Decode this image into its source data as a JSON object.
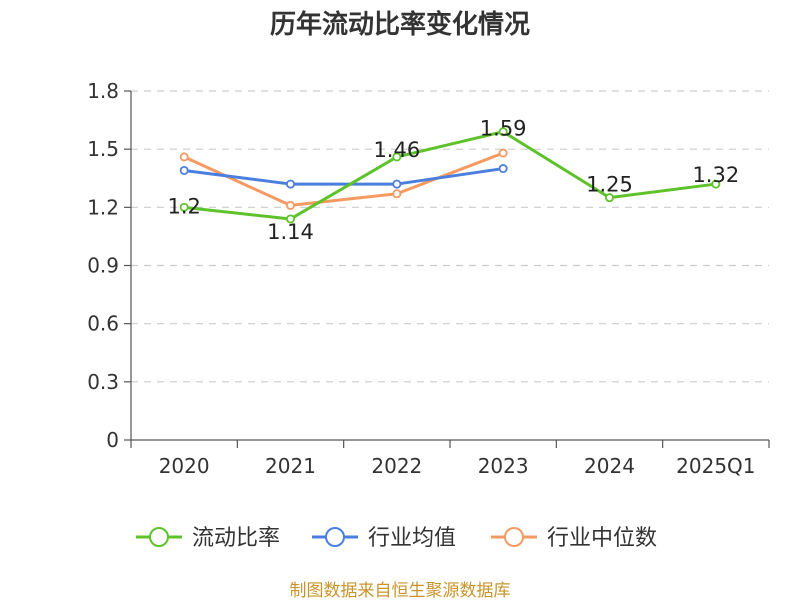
{
  "chart_data": {
    "type": "line",
    "title": "历年流动比率变化情况",
    "categories": [
      "2020",
      "2021",
      "2022",
      "2023",
      "2024",
      "2025Q1"
    ],
    "ylim": [
      0,
      1.8
    ],
    "yticks": [
      "0",
      "0.3",
      "0.6",
      "0.9",
      "1.2",
      "1.5",
      "1.8"
    ],
    "grid": true,
    "legend_position": "bottom",
    "series": [
      {
        "name": "流动比率",
        "color": "#5ec22b",
        "values": [
          1.2,
          1.14,
          1.46,
          1.59,
          1.25,
          1.32
        ],
        "labels": [
          "1.2",
          "1.14",
          "1.46",
          "1.59",
          "1.25",
          "1.32"
        ]
      },
      {
        "name": "行业均值",
        "color": "#4a7fdd",
        "values": [
          1.39,
          1.32,
          1.32,
          1.4,
          null,
          null
        ]
      },
      {
        "name": "行业中位数",
        "color": "#f79a62",
        "values": [
          1.46,
          1.21,
          1.27,
          1.48,
          null,
          null
        ]
      }
    ]
  },
  "source_text": "制图数据来自恒生聚源数据库"
}
